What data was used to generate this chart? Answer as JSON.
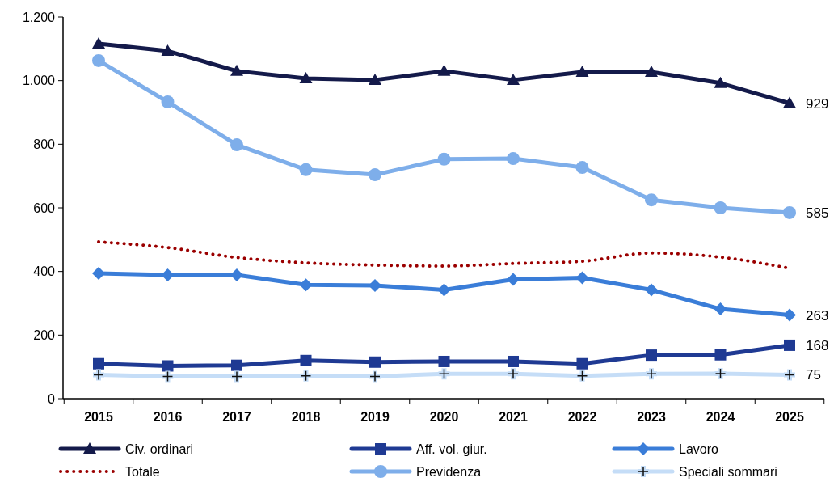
{
  "chart_data": {
    "type": "line",
    "categories": [
      "2015",
      "2016",
      "2017",
      "2018",
      "2019",
      "2020",
      "2021",
      "2022",
      "2023",
      "2024",
      "2025"
    ],
    "ylim": [
      0,
      1200
    ],
    "yticks": [
      0,
      200,
      400,
      600,
      800,
      {
        "value": 1000,
        "label": "1.000"
      },
      {
        "value": 1200,
        "label": "1.200"
      }
    ],
    "grid": false,
    "legend": "bottom",
    "series": [
      {
        "name": "Civ. ordinari",
        "color": "#141a4a",
        "marker": "triangle",
        "line_style": "solid",
        "values": [
          1116,
          1093,
          1030,
          1007,
          1002,
          1030,
          1002,
          1027,
          1027,
          992,
          929
        ],
        "value_labels": [
          null,
          null,
          null,
          null,
          null,
          null,
          null,
          null,
          null,
          null,
          "929"
        ]
      },
      {
        "name": "Aff. vol. giur.",
        "color": "#1f3a93",
        "marker": "square",
        "line_style": "solid",
        "values": [
          110,
          103,
          105,
          120,
          115,
          117,
          117,
          110,
          137,
          138,
          168
        ],
        "value_labels": [
          null,
          null,
          null,
          null,
          null,
          null,
          null,
          null,
          null,
          null,
          "168"
        ]
      },
      {
        "name": "Lavoro",
        "color": "#3a7dd8",
        "marker": "diamond",
        "line_style": "solid",
        "values": [
          394,
          389,
          389,
          358,
          356,
          342,
          375,
          380,
          342,
          282,
          263
        ],
        "value_labels": [
          null,
          null,
          null,
          null,
          null,
          null,
          null,
          null,
          null,
          null,
          "263"
        ]
      },
      {
        "name": "Totale",
        "color": "#9b0000",
        "marker": "none",
        "line_style": "dotted",
        "values": [
          493,
          475,
          444,
          427,
          420,
          417,
          425,
          432,
          458,
          445,
          410
        ]
      },
      {
        "name": "Previdenza",
        "color": "#7eaeea",
        "marker": "circle",
        "line_style": "solid",
        "values": [
          1063,
          933,
          798,
          720,
          704,
          753,
          755,
          727,
          625,
          600,
          585
        ],
        "value_labels": [
          null,
          null,
          null,
          null,
          null,
          null,
          null,
          null,
          null,
          null,
          "585"
        ]
      },
      {
        "name": "Speciali sommari",
        "color": "#c5ddf7",
        "marker": "cross",
        "line_style": "solid",
        "values": [
          75,
          70,
          70,
          72,
          70,
          78,
          78,
          72,
          78,
          79,
          75
        ],
        "value_labels": [
          null,
          null,
          null,
          null,
          null,
          null,
          null,
          null,
          null,
          null,
          "75"
        ]
      }
    ]
  }
}
